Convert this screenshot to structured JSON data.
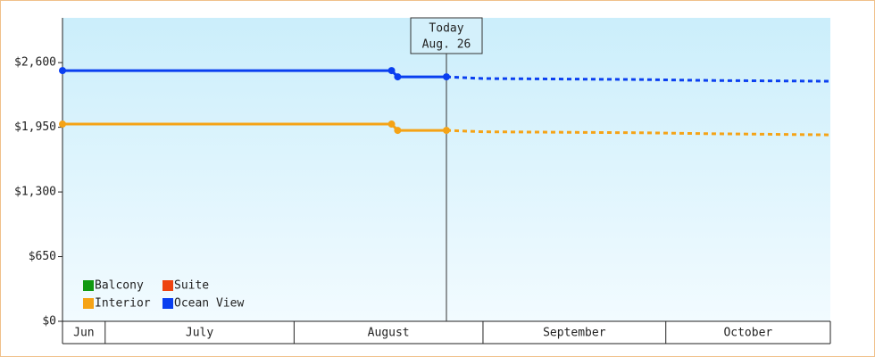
{
  "chart_data": {
    "type": "line",
    "x": [
      0,
      54,
      55,
      63,
      69,
      95,
      107,
      126
    ],
    "xlim": [
      0,
      126
    ],
    "xticks": [
      0,
      7,
      38,
      69,
      99,
      126
    ],
    "months": [
      "Jun",
      "July",
      "August",
      "September",
      "October"
    ],
    "today": {
      "x": 63,
      "label": "Today",
      "date": "Aug. 26"
    },
    "ylim": [
      0,
      3050
    ],
    "yticks": [
      {
        "value": 0,
        "label": "$0"
      },
      {
        "value": 650,
        "label": "$650"
      },
      {
        "value": 1300,
        "label": "$1,300"
      },
      {
        "value": 1950,
        "label": "$1,950"
      },
      {
        "value": 2600,
        "label": "$2,600"
      }
    ],
    "series": [
      {
        "name": "Balcony",
        "color": "#119911",
        "values": [
          null,
          null,
          null,
          null,
          null,
          null,
          null,
          null
        ]
      },
      {
        "name": "Suite",
        "color": "#ee4411",
        "values": [
          null,
          null,
          null,
          null,
          null,
          null,
          null,
          null
        ]
      },
      {
        "name": "Interior",
        "color": "#f5a316",
        "values": [
          1982,
          1982,
          1919,
          1919,
          1905,
          1895,
          1885,
          1874
        ]
      },
      {
        "name": "Ocean View",
        "color": "#0a3ff0",
        "values": [
          2520,
          2520,
          2457,
          2457,
          2440,
          2430,
          2420,
          2413
        ]
      }
    ]
  }
}
